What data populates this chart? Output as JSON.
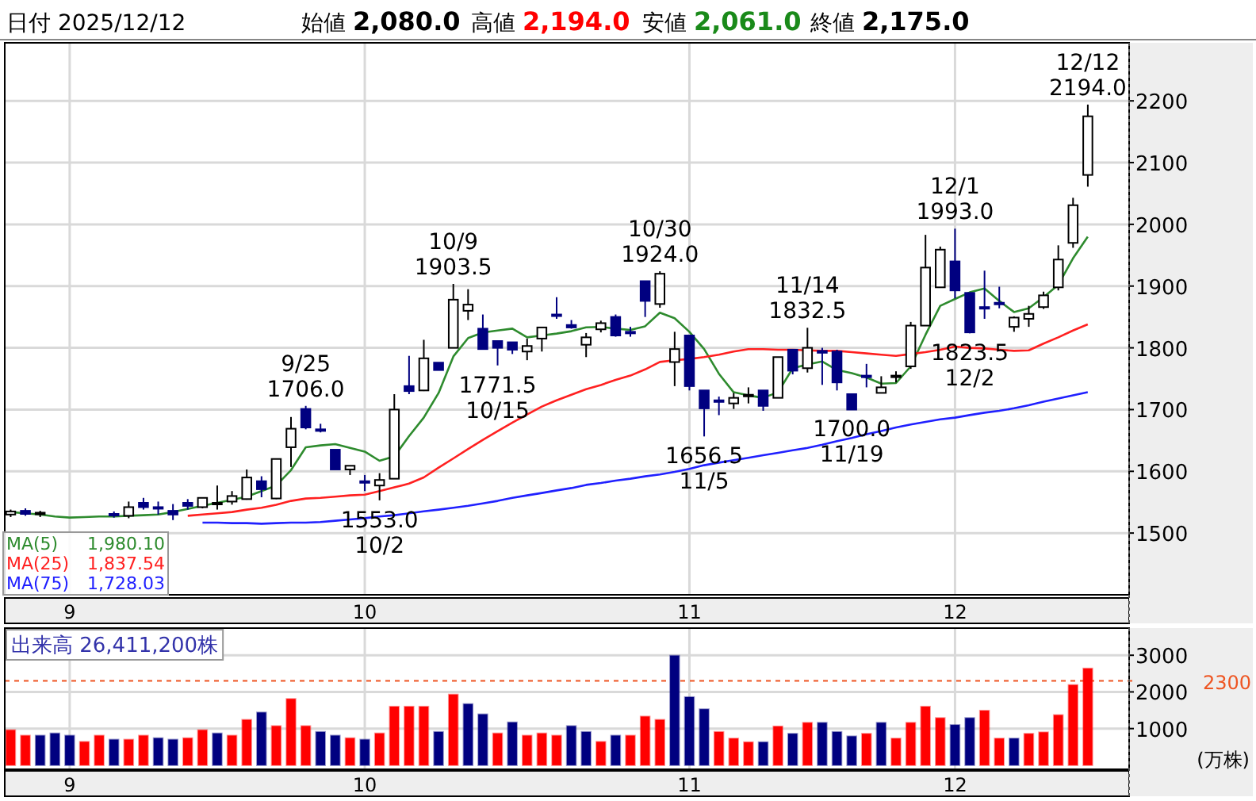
{
  "chart_data": [
    {
      "type": "candlestick",
      "title": "日付 2025/12/12",
      "categories": [
        null,
        null,
        null,
        null,
        "9",
        null,
        null,
        null,
        null,
        null,
        null,
        null,
        null,
        null,
        null,
        null,
        null,
        null,
        null,
        null,
        null,
        null,
        null,
        null,
        "10",
        null,
        null,
        null,
        null,
        null,
        null,
        null,
        null,
        null,
        null,
        null,
        null,
        null,
        null,
        null,
        null,
        null,
        null,
        null,
        null,
        null,
        "11",
        null,
        null,
        null,
        null,
        null,
        null,
        null,
        null,
        null,
        null,
        null,
        null,
        null,
        null,
        null,
        null,
        null,
        "12",
        null,
        null,
        null,
        null,
        null,
        null,
        null,
        null,
        null
      ],
      "colors": [
        "#ffffff",
        "#000080",
        "#ffffff",
        null,
        null,
        null,
        null,
        "#000080",
        "#ffffff",
        "#000080",
        "#000080",
        "#000080",
        "#000080",
        "#ffffff",
        "#ffffff",
        "#ffffff",
        "#ffffff",
        "#000080",
        "#ffffff",
        "#ffffff",
        "#000080",
        "#000080",
        "#000080",
        "#ffffff",
        "#000080",
        "#ffffff",
        "#ffffff",
        "#000080",
        "#ffffff",
        "#000080",
        "#ffffff",
        "#ffffff",
        "#000080",
        "#000080",
        "#000080",
        "#ffffff",
        "#ffffff",
        "#000080",
        "#000080",
        "#ffffff",
        "#ffffff",
        "#000080",
        "#000080",
        "#000080",
        "#ffffff",
        "#ffffff",
        "#000080",
        "#000080",
        "#000080",
        "#ffffff",
        "#ffffff",
        "#000080",
        "#ffffff",
        "#000080",
        "#ffffff",
        "#000080",
        "#000080",
        "#000080",
        "#000080",
        "#ffffff",
        "#ffffff",
        "#ffffff",
        "#ffffff",
        "#ffffff",
        "#000080",
        "#000080",
        "#000080",
        "#000080",
        "#ffffff",
        "#ffffff",
        "#ffffff",
        "#ffffff",
        "#ffffff",
        "#ffffff"
      ],
      "ohlc": [
        [
          1530,
          1538,
          1526,
          1535
        ],
        [
          1536,
          1540,
          1528,
          1531
        ],
        [
          1532,
          1536,
          1526,
          1533
        ],
        null,
        null,
        null,
        null,
        [
          1531,
          1535,
          1525,
          1530
        ],
        [
          1528,
          1551,
          1524,
          1542
        ],
        [
          1549,
          1557,
          1538,
          1542
        ],
        [
          1542,
          1551,
          1530,
          1541
        ],
        [
          1536,
          1547,
          1521,
          1530
        ],
        [
          1549,
          1555,
          1538,
          1544
        ],
        [
          1542,
          1557,
          1540,
          1557
        ],
        [
          1547,
          1577,
          1538,
          1549
        ],
        [
          1551,
          1568,
          1546,
          1560
        ],
        [
          1555,
          1603,
          1554,
          1590
        ],
        [
          1584,
          1592,
          1558,
          1571
        ],
        [
          1556,
          1620,
          1555,
          1620
        ],
        [
          1639,
          1688,
          1607,
          1669
        ],
        [
          1701,
          1706,
          1668,
          1671
        ],
        [
          1668,
          1677,
          1663,
          1666
        ],
        [
          1635,
          1635,
          1603,
          1603
        ],
        [
          1603,
          1609,
          1594,
          1609
        ],
        [
          1584,
          1594,
          1568,
          1583
        ],
        [
          1577,
          1597,
          1553,
          1586
        ],
        [
          1588,
          1725,
          1588,
          1700
        ],
        [
          1738,
          1787,
          1725,
          1730
        ],
        [
          1731,
          1813,
          1730,
          1783
        ],
        [
          1776,
          1776,
          1764,
          1764
        ],
        [
          1800,
          1903.5,
          1800,
          1878
        ],
        [
          1860,
          1895,
          1845,
          1870
        ],
        [
          1831,
          1854,
          1798,
          1798
        ],
        [
          1811,
          1811,
          1771.5,
          1800
        ],
        [
          1809,
          1809,
          1790,
          1797
        ],
        [
          1794,
          1815,
          1780,
          1803
        ],
        [
          1815,
          1833,
          1794,
          1833
        ],
        [
          1854,
          1882,
          1847,
          1852
        ],
        [
          1837,
          1845,
          1831,
          1833
        ],
        [
          1805,
          1824,
          1785,
          1817
        ],
        [
          1830,
          1844,
          1825,
          1840
        ],
        [
          1850,
          1854,
          1818,
          1820
        ],
        [
          1826,
          1834,
          1818,
          1824
        ],
        [
          1908,
          1908,
          1850,
          1876
        ],
        [
          1871,
          1924,
          1865,
          1920
        ],
        [
          1777,
          1826,
          1738,
          1798
        ],
        [
          1820,
          1820,
          1731,
          1738
        ],
        [
          1731,
          1731,
          1656.5,
          1702
        ],
        [
          1715,
          1721,
          1691,
          1713
        ],
        [
          1710,
          1727,
          1701,
          1719
        ],
        [
          1723,
          1736,
          1710,
          1724
        ],
        [
          1731,
          1731,
          1698,
          1706
        ],
        [
          1719,
          1785,
          1719,
          1785
        ],
        [
          1797,
          1797,
          1757,
          1763
        ],
        [
          1767,
          1832.5,
          1760,
          1800
        ],
        [
          1795,
          1800,
          1740,
          1792
        ],
        [
          1794,
          1797,
          1731,
          1744
        ],
        [
          1725,
          1725,
          1700,
          1700
        ],
        [
          1755,
          1774,
          1736,
          1753
        ],
        [
          1727,
          1754,
          1727,
          1736
        ],
        [
          1753,
          1762,
          1744,
          1755
        ],
        [
          1770,
          1842,
          1766,
          1836
        ],
        [
          1836,
          1983,
          1836,
          1930
        ],
        [
          1898,
          1964,
          1898,
          1959
        ],
        [
          1940,
          1993,
          1880,
          1893
        ],
        [
          1889,
          1889,
          1823.5,
          1825
        ],
        [
          1866,
          1925,
          1847,
          1864
        ],
        [
          1873,
          1899,
          1864,
          1871
        ],
        [
          1834,
          1851,
          1826,
          1849
        ],
        [
          1847,
          1868,
          1834,
          1855
        ],
        [
          1866,
          1891,
          1863,
          1885
        ],
        [
          1898,
          1966,
          1893,
          1943
        ],
        [
          1970,
          2043,
          1962,
          2031
        ],
        [
          2080,
          2194,
          2061,
          2175
        ]
      ],
      "series": [
        {
          "name": "MA(5) 1,980.10",
          "type": "line",
          "color": "#2e8b2e",
          "values": [
            1534,
            1532,
            1530,
            1527,
            1525,
            1526,
            1527,
            1527,
            1528,
            1529,
            1530,
            1534,
            1539,
            1544,
            1549,
            1554,
            1559,
            1568,
            1577,
            1602,
            1639,
            1642,
            1644,
            1638,
            1632,
            1617,
            1624,
            1657,
            1687,
            1727,
            1786,
            1816,
            1825,
            1828,
            1831,
            1817,
            1820,
            1823,
            1827,
            1833,
            1834,
            1831,
            1829,
            1835,
            1857,
            1848,
            1826,
            1798,
            1758,
            1728,
            1723,
            1719,
            1728,
            1767,
            1773,
            1778,
            1764,
            1759,
            1752,
            1742,
            1743,
            1770,
            1821,
            1868,
            1879,
            1890,
            1896,
            1876,
            1858,
            1864,
            1882,
            1902,
            1945,
            1980
          ]
        },
        {
          "name": "MA(25) 1,837.54",
          "type": "line",
          "color": "#ff2020",
          "values": [
            null,
            null,
            null,
            null,
            null,
            null,
            null,
            null,
            null,
            null,
            null,
            null,
            1528,
            1530,
            1532,
            1534,
            1538,
            1541,
            1546,
            1552,
            1556,
            1557,
            1559,
            1561,
            1562,
            1568,
            1574,
            1580,
            1590,
            1606,
            1621,
            1636,
            1651,
            1665,
            1679,
            1692,
            1705,
            1715,
            1724,
            1733,
            1740,
            1748,
            1755,
            1765,
            1777,
            1780,
            1782,
            1785,
            1789,
            1794,
            1798,
            1798,
            1797,
            1797,
            1796,
            1795,
            1795,
            1793,
            1791,
            1789,
            1787,
            1790,
            1793,
            1797,
            1802,
            1800,
            1799,
            1797,
            1795,
            1796,
            1807,
            1817,
            1828,
            1838
          ]
        },
        {
          "name": "MA(75) 1,728.03",
          "type": "line",
          "color": "#2020ff",
          "values": [
            null,
            null,
            null,
            null,
            null,
            null,
            null,
            null,
            null,
            null,
            null,
            null,
            null,
            1517,
            1517,
            1516,
            1516,
            1515,
            1516,
            1517,
            1517,
            1518,
            1520,
            1522,
            1524,
            1527,
            1529,
            1532,
            1535,
            1538,
            1541,
            1544,
            1548,
            1552,
            1557,
            1561,
            1565,
            1569,
            1573,
            1578,
            1581,
            1585,
            1588,
            1592,
            1595,
            1599,
            1604,
            1610,
            1614,
            1618,
            1622,
            1626,
            1630,
            1634,
            1638,
            1643,
            1649,
            1654,
            1660,
            1665,
            1671,
            1676,
            1680,
            1684,
            1687,
            1691,
            1695,
            1698,
            1702,
            1707,
            1713,
            1718,
            1723,
            1728
          ]
        }
      ],
      "ylim": [
        1400,
        2294
      ],
      "yticks": [
        1500,
        1600,
        1700,
        1800,
        1900,
        2000,
        2100,
        2200
      ],
      "grid": true,
      "legend": "bottom left",
      "annotations": [
        "始値 2,080.0",
        "高値 2,194.0",
        "安値 2,061.0",
        "終値 2,175.0",
        {
          "text": "12/12\n2194.0",
          "y": 2194
        },
        {
          "text": "9/25\n1706.0",
          "y": 1706
        },
        {
          "text": "10/9\n1903.5",
          "y": 1903.5
        },
        {
          "text": "10/30\n1924.0",
          "y": 1924
        },
        {
          "text": "11/14\n1832.5",
          "y": 1832.5
        },
        {
          "text": "12/1\n1993.0",
          "y": 1993
        },
        {
          "text": "1553.0\n10/2",
          "y": 1553
        },
        {
          "text": "1771.5\n10/15",
          "y": 1771.5
        },
        {
          "text": "1656.5\n11/5",
          "y": 1656.5
        },
        {
          "text": "1700.0\n11/19",
          "y": 1700
        },
        {
          "text": "1823.5\n12/2",
          "y": 1823.5
        }
      ]
    },
    {
      "type": "bar",
      "title": "出来高 26,411,200株",
      "ylabel": "(万株)",
      "categories": [
        null,
        null,
        null,
        null,
        "9",
        null,
        null,
        null,
        null,
        null,
        null,
        null,
        null,
        null,
        null,
        null,
        null,
        null,
        null,
        null,
        null,
        null,
        null,
        null,
        "10",
        null,
        null,
        null,
        null,
        null,
        null,
        null,
        null,
        null,
        null,
        null,
        null,
        null,
        null,
        null,
        null,
        null,
        null,
        null,
        null,
        null,
        "11",
        null,
        null,
        null,
        null,
        null,
        null,
        null,
        null,
        null,
        null,
        null,
        null,
        null,
        null,
        null,
        null,
        null,
        "12",
        null,
        null,
        null,
        null,
        null,
        null,
        null,
        null,
        null
      ],
      "values": [
        960,
        810,
        810,
        870,
        810,
        640,
        810,
        700,
        700,
        810,
        740,
        700,
        740,
        960,
        870,
        810,
        1240,
        1440,
        1070,
        1810,
        1070,
        910,
        810,
        740,
        700,
        870,
        1600,
        1600,
        1600,
        910,
        1930,
        1670,
        1390,
        870,
        1170,
        810,
        870,
        810,
        1070,
        910,
        640,
        810,
        810,
        1330,
        1240,
        2990,
        1860,
        1530,
        910,
        730,
        630,
        630,
        1060,
        860,
        1160,
        1160,
        910,
        790,
        860,
        1160,
        730,
        1160,
        1600,
        1290,
        1100,
        1290,
        1490,
        730,
        730,
        860,
        900,
        1370,
        2190,
        2640
      ],
      "colors": [
        "#ff0000",
        "#ff0000",
        "#000080",
        "#000080",
        "#000080",
        "#ff0000",
        "#ff0000",
        "#000080",
        "#ff0000",
        "#ff0000",
        "#000080",
        "#000080",
        "#ff0000",
        "#ff0000",
        "#000080",
        "#ff0000",
        "#ff0000",
        "#000080",
        "#ff0000",
        "#ff0000",
        "#ff0000",
        "#000080",
        "#000080",
        "#ff0000",
        "#000080",
        "#ff0000",
        "#ff0000",
        "#ff0000",
        "#ff0000",
        "#000080",
        "#ff0000",
        "#000080",
        "#000080",
        "#ff0000",
        "#000080",
        "#ff0000",
        "#ff0000",
        "#ff0000",
        "#000080",
        "#000080",
        "#ff0000",
        "#000080",
        "#ff0000",
        "#ff0000",
        "#ff0000",
        "#000080",
        "#000080",
        "#000080",
        "#ff0000",
        "#ff0000",
        "#ff0000",
        "#000080",
        "#ff0000",
        "#000080",
        "#ff0000",
        "#000080",
        "#000080",
        "#000080",
        "#ff0000",
        "#000080",
        "#ff0000",
        "#ff0000",
        "#ff0000",
        "#ff0000",
        "#000080",
        "#000080",
        "#ff0000",
        "#ff0000",
        "#000080",
        "#ff0000",
        "#ff0000",
        "#ff0000",
        "#ff0000",
        "#ff0000"
      ],
      "ylim": [
        -110,
        3740
      ],
      "yticks": [
        1000,
        2000,
        3000
      ],
      "grid": true,
      "ref_lines": [
        {
          "axis": "y",
          "value": 2300,
          "label": "2300",
          "color": "#ee5522",
          "line_style": "dashed"
        }
      ]
    }
  ]
}
